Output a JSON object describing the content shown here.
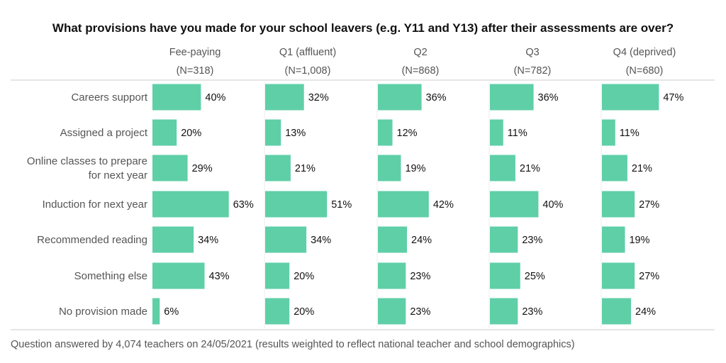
{
  "chart_data": {
    "type": "bar",
    "orientation": "horizontal",
    "layout": "small-multiples",
    "title": "What provisions have you made for your school leavers (e.g. Y11 and Y13) after their assessments are over?",
    "footer": "Question answered by 4,074 teachers on 24/05/2021 (results weighted to reflect national teacher and school demographics)",
    "categories": [
      "Careers support",
      "Assigned a project",
      "Online classes to prepare|for next year",
      "Induction for next year",
      "Recommended reading",
      "Something else",
      "No provision made"
    ],
    "series": [
      {
        "name": "Fee-paying",
        "n": "(N=318)",
        "values": [
          40,
          20,
          29,
          63,
          34,
          43,
          6
        ]
      },
      {
        "name": "Q1 (affluent)",
        "n": "(N=1,008)",
        "values": [
          32,
          13,
          21,
          51,
          34,
          20,
          20
        ]
      },
      {
        "name": "Q2",
        "n": "(N=868)",
        "values": [
          36,
          12,
          19,
          42,
          24,
          23,
          23
        ]
      },
      {
        "name": "Q3",
        "n": "(N=782)",
        "values": [
          36,
          11,
          21,
          40,
          23,
          25,
          23
        ]
      },
      {
        "name": "Q4 (deprived)",
        "n": "(N=680)",
        "values": [
          47,
          11,
          21,
          27,
          19,
          27,
          24
        ]
      }
    ],
    "value_suffix": "%",
    "bar_color": "#5fcfa7",
    "grid": false
  }
}
